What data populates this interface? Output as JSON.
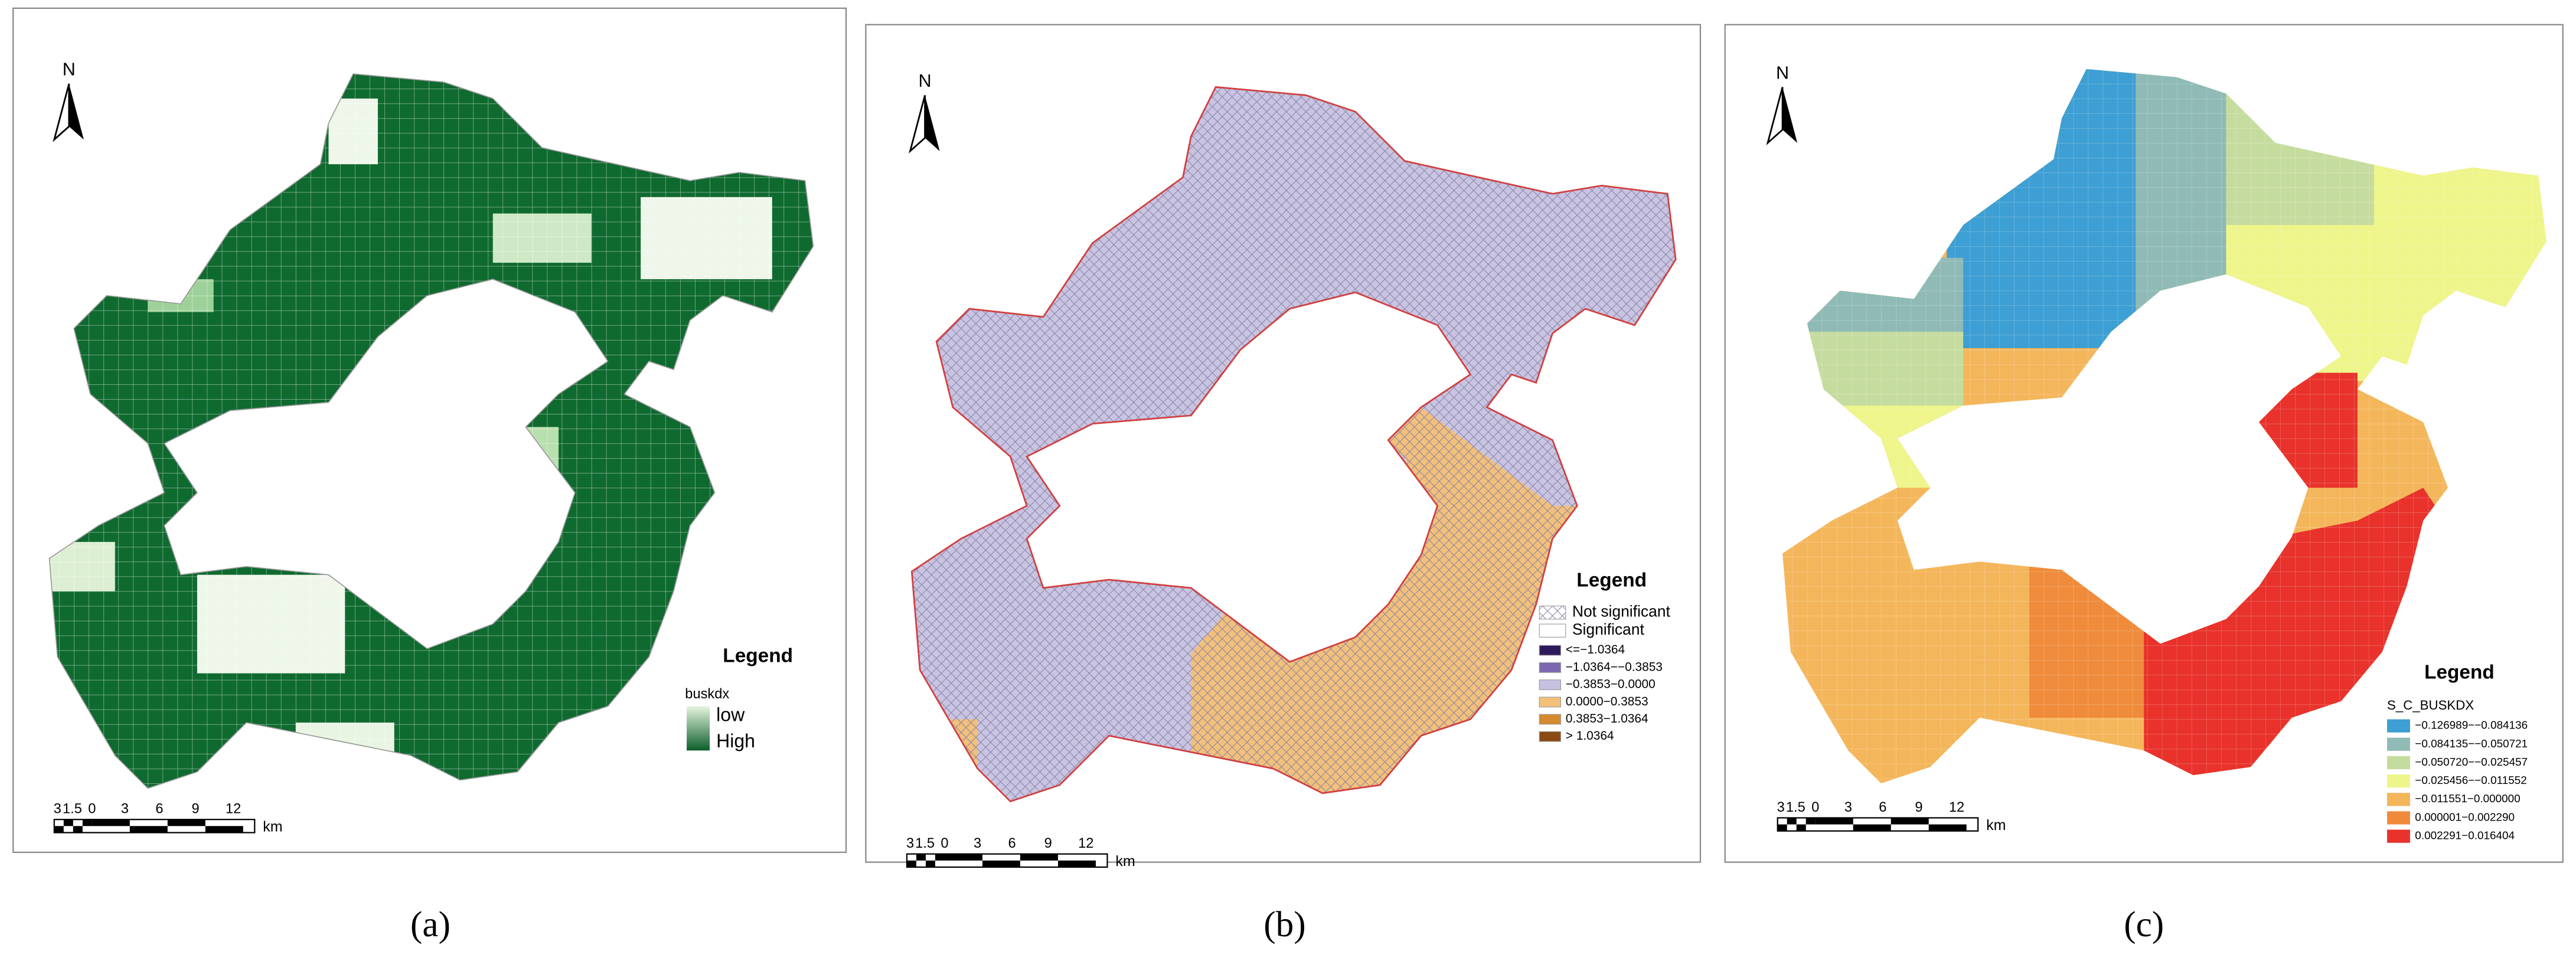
{
  "panels": [
    {
      "caption": "(a)",
      "north": "N",
      "legend": {
        "title": "Legend",
        "field": "buskdx",
        "items": [
          {
            "label": "low",
            "color": "#e6f4df"
          },
          {
            "label": "High",
            "color": "#0b5e2a"
          }
        ]
      },
      "scale": {
        "ticks": [
          "3",
          "1.5",
          "0",
          "3",
          "6",
          "9",
          "12"
        ],
        "unit": "km"
      }
    },
    {
      "caption": "(b)",
      "north": "N",
      "legend": {
        "title": "Legend",
        "items": [
          {
            "label": "Not significant"
          },
          {
            "label": "Significant",
            "color": "#ffffff"
          },
          {
            "label": "<=−1.0364",
            "color": "#2d1a5a"
          },
          {
            "label": "−1.0364−−0.3853",
            "color": "#7b68b0"
          },
          {
            "label": "−0.3853−0.0000",
            "color": "#c6c1e0"
          },
          {
            "label": "0.0000−0.3853",
            "color": "#f3c07a"
          },
          {
            "label": "0.3853−1.0364",
            "color": "#d58a2e"
          },
          {
            "label": "> 1.0364",
            "color": "#8b4a13"
          }
        ]
      },
      "scale": {
        "ticks": [
          "3",
          "1.5",
          "0",
          "3",
          "6",
          "9",
          "12"
        ],
        "unit": "km"
      }
    },
    {
      "caption": "(c)",
      "north": "N",
      "legend": {
        "title": "Legend",
        "field": "S_C_BUSKDX",
        "items": [
          {
            "label": "−0.126989−−0.084136",
            "color": "#3d9fd3"
          },
          {
            "label": "−0.084135−−0.050721",
            "color": "#8fbab6"
          },
          {
            "label": "−0.050720−−0.025457",
            "color": "#c5dc9f"
          },
          {
            "label": "−0.025456−−0.011552",
            "color": "#eef58a"
          },
          {
            "label": "−0.011551−0.000000",
            "color": "#f4b65b"
          },
          {
            "label": "0.000001−0.002290",
            "color": "#ef8b3b"
          },
          {
            "label": "0.002291−0.016404",
            "color": "#e8322b"
          }
        ]
      },
      "scale": {
        "ticks": [
          "3",
          "1.5",
          "0",
          "3",
          "6",
          "9",
          "12"
        ],
        "unit": "km"
      }
    }
  ]
}
